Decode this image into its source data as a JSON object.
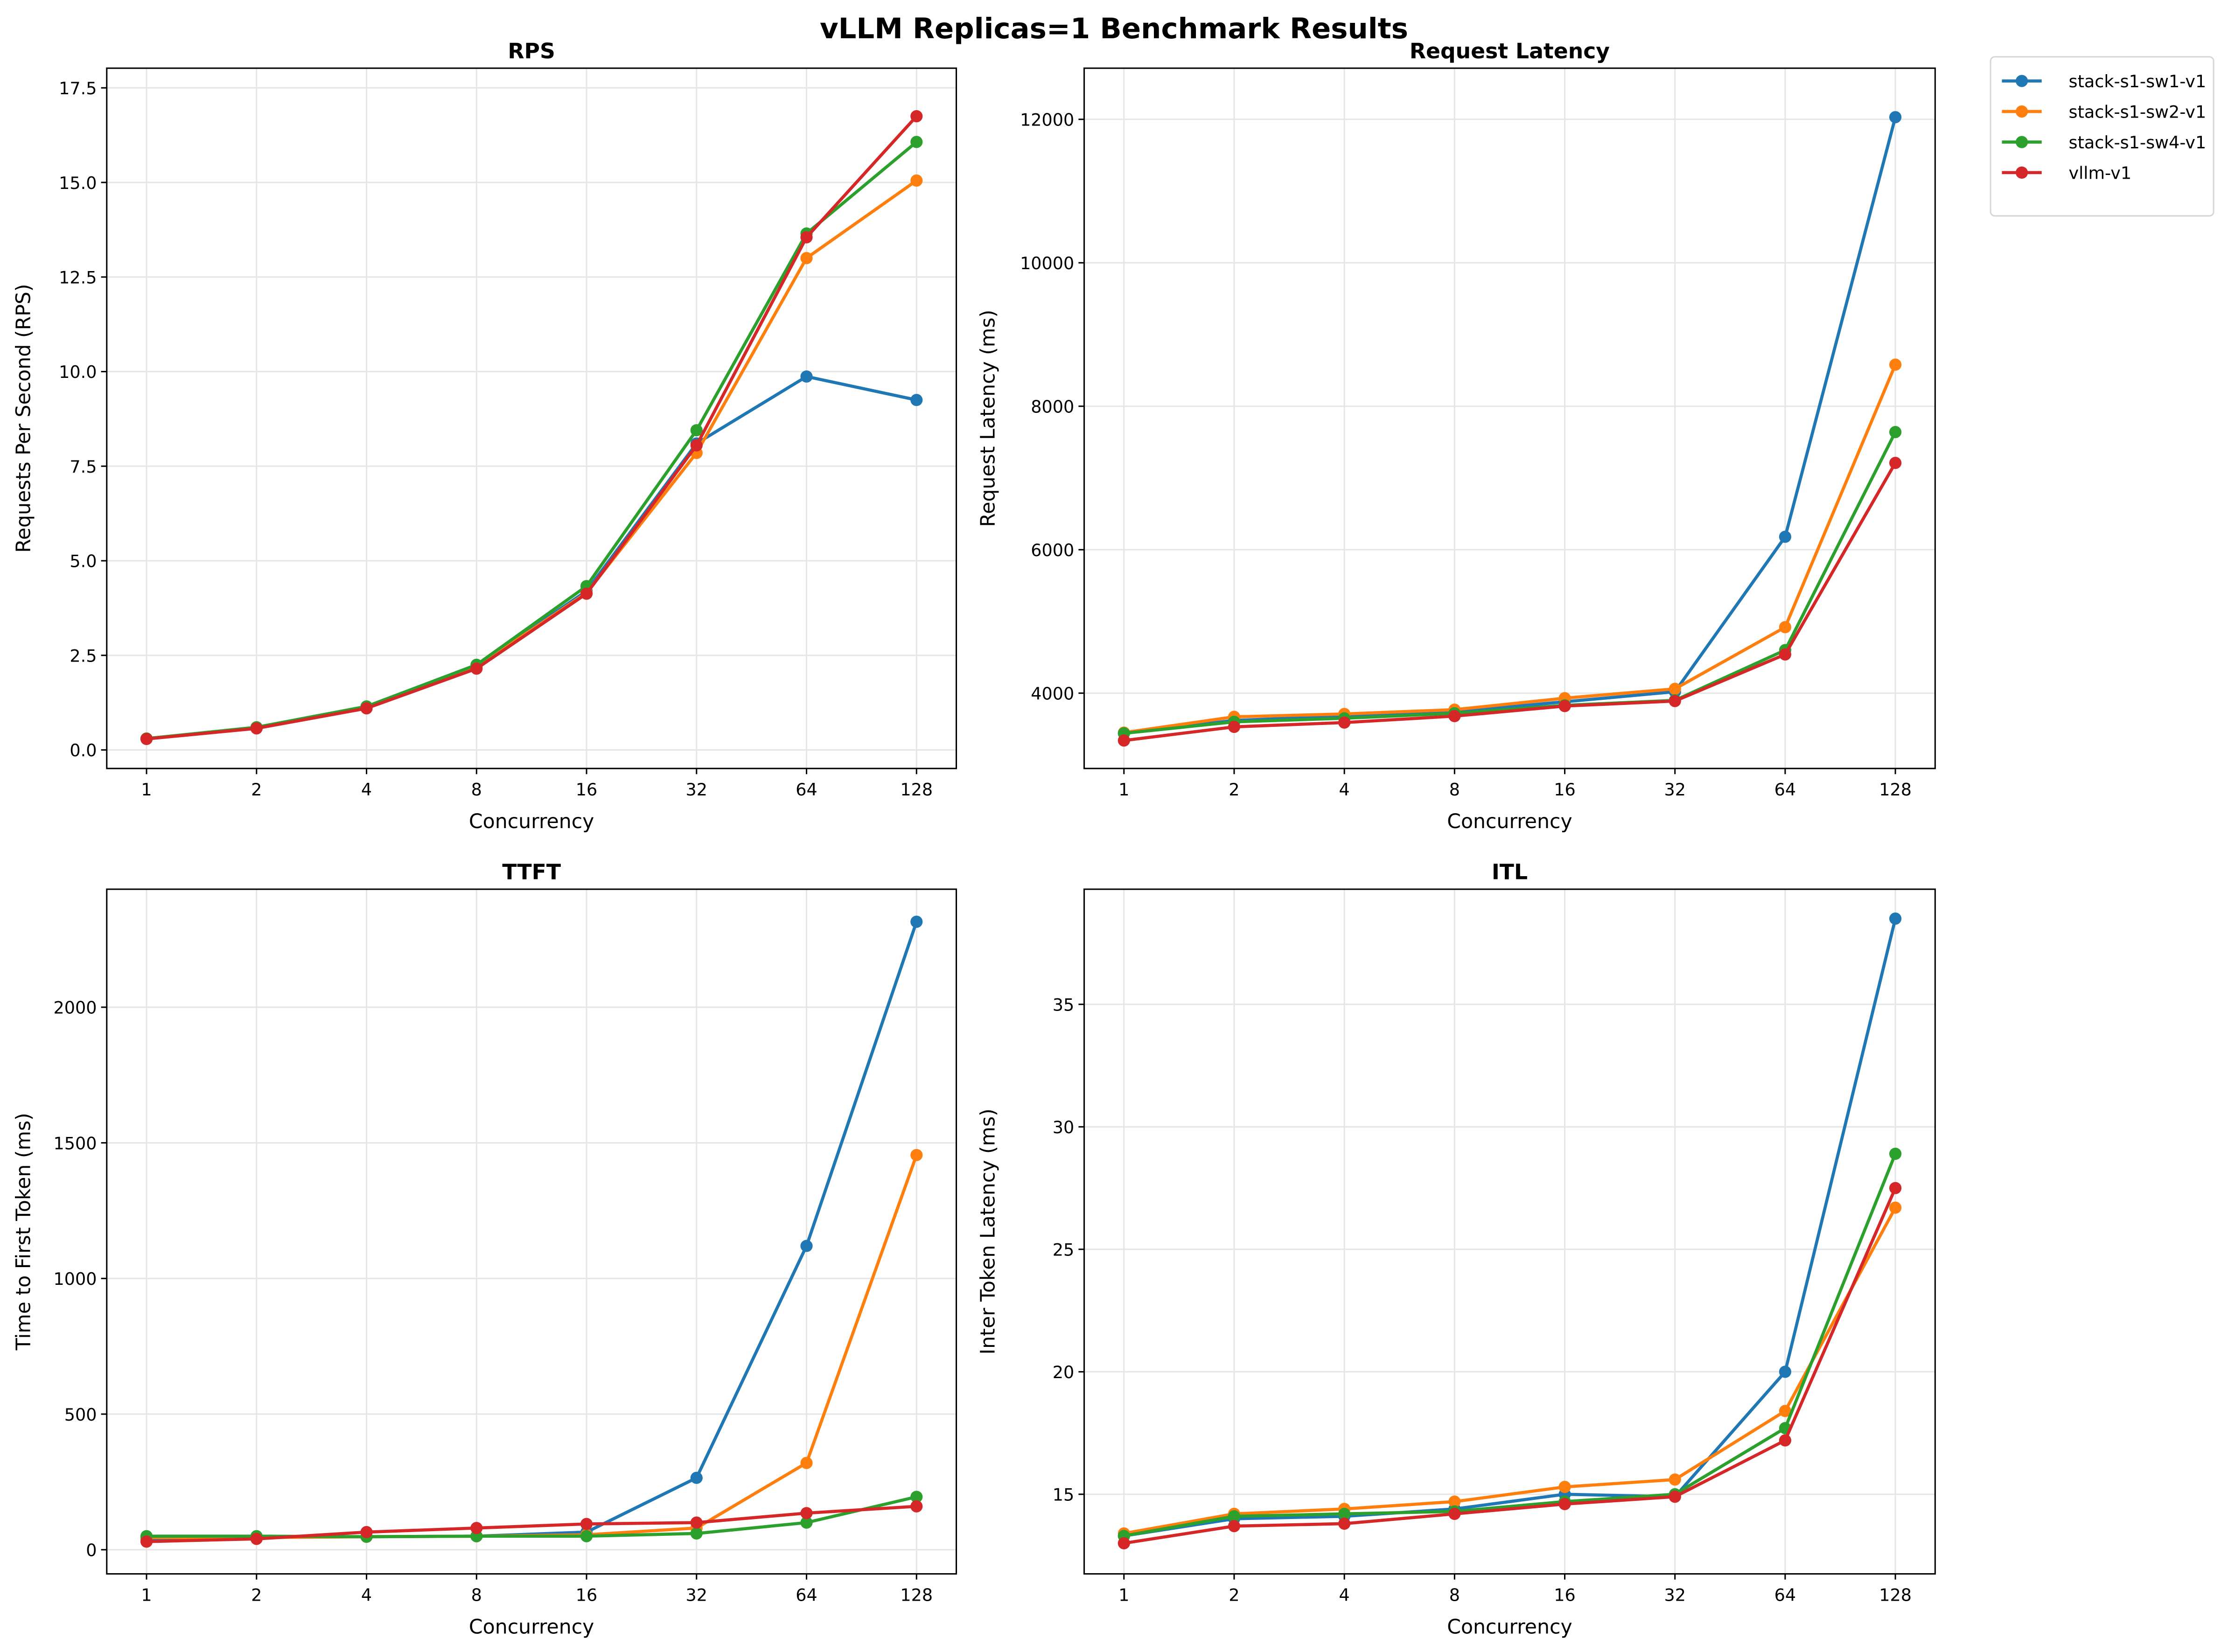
{
  "title": "vLLM Replicas=1 Benchmark Results",
  "legend": {
    "placement": "outside-top-right",
    "entries": [
      {
        "name": "stack-s1-sw1-v1",
        "color": "#1f77b4"
      },
      {
        "name": "stack-s1-sw2-v1",
        "color": "#ff7f0e"
      },
      {
        "name": "stack-s1-sw4-v1",
        "color": "#2ca02c"
      },
      {
        "name": "vllm-v1",
        "color": "#d62728"
      }
    ]
  },
  "chart_data": [
    {
      "type": "line",
      "title": "RPS",
      "xlabel": "Concurrency",
      "ylabel": "Requests Per Second (RPS)",
      "categories": [
        "1",
        "2",
        "4",
        "8",
        "16",
        "32",
        "64",
        "128"
      ],
      "ylim": [
        -0.49,
        18.02
      ],
      "yticks": [
        "0.0",
        "2.5",
        "5.0",
        "7.5",
        "10.0",
        "12.5",
        "15.0",
        "17.5"
      ],
      "grid": true,
      "series": [
        {
          "name": "stack-s1-sw1-v1",
          "values": [
            0.3,
            0.58,
            1.13,
            2.22,
            4.2,
            8.1,
            9.87,
            9.25
          ]
        },
        {
          "name": "stack-s1-sw2-v1",
          "values": [
            0.3,
            0.58,
            1.12,
            2.2,
            4.15,
            7.85,
            13.0,
            15.05
          ]
        },
        {
          "name": "stack-s1-sw4-v1",
          "values": [
            0.3,
            0.6,
            1.15,
            2.25,
            4.33,
            8.45,
            13.65,
            16.07
          ]
        },
        {
          "name": "vllm-v1",
          "values": [
            0.29,
            0.57,
            1.1,
            2.15,
            4.13,
            8.05,
            13.55,
            16.75
          ]
        }
      ]
    },
    {
      "type": "line",
      "title": "Request Latency",
      "xlabel": "Concurrency",
      "ylabel": "Request Latency (ms)",
      "categories": [
        "1",
        "2",
        "4",
        "8",
        "16",
        "32",
        "64",
        "128"
      ],
      "ylim": [
        2950,
        12713
      ],
      "yticks": [
        "4000",
        "6000",
        "8000",
        "10000",
        "12000"
      ],
      "grid": true,
      "series": [
        {
          "name": "stack-s1-sw1-v1",
          "values": [
            3440,
            3620,
            3680,
            3740,
            3880,
            4020,
            6180,
            12030
          ]
        },
        {
          "name": "stack-s1-sw2-v1",
          "values": [
            3450,
            3670,
            3710,
            3770,
            3930,
            4060,
            4920,
            8580
          ]
        },
        {
          "name": "stack-s1-sw4-v1",
          "values": [
            3440,
            3600,
            3650,
            3720,
            3830,
            3900,
            4600,
            7640
          ]
        },
        {
          "name": "vllm-v1",
          "values": [
            3340,
            3530,
            3590,
            3680,
            3820,
            3890,
            4540,
            7210
          ]
        }
      ]
    },
    {
      "type": "line",
      "title": "TTFT",
      "xlabel": "Concurrency",
      "ylabel": "Time to First Token (ms)",
      "categories": [
        "1",
        "2",
        "4",
        "8",
        "16",
        "32",
        "64",
        "128"
      ],
      "ylim": [
        -89,
        2435
      ],
      "yticks": [
        "0",
        "500",
        "1000",
        "1500",
        "2000"
      ],
      "grid": true,
      "series": [
        {
          "name": "stack-s1-sw1-v1",
          "values": [
            40,
            45,
            48,
            50,
            65,
            265,
            1120,
            2315
          ]
        },
        {
          "name": "stack-s1-sw2-v1",
          "values": [
            45,
            45,
            48,
            50,
            55,
            80,
            320,
            1455
          ]
        },
        {
          "name": "stack-s1-sw4-v1",
          "values": [
            50,
            50,
            48,
            50,
            50,
            60,
            100,
            195
          ]
        },
        {
          "name": "vllm-v1",
          "values": [
            30,
            40,
            65,
            80,
            95,
            100,
            135,
            160
          ]
        }
      ]
    },
    {
      "type": "line",
      "title": "ITL",
      "xlabel": "Concurrency",
      "ylabel": "Inter Token Latency (ms)",
      "categories": [
        "1",
        "2",
        "4",
        "8",
        "16",
        "32",
        "64",
        "128"
      ],
      "ylim": [
        11.75,
        39.7
      ],
      "yticks": [
        "15",
        "20",
        "25",
        "30",
        "35"
      ],
      "grid": true,
      "series": [
        {
          "name": "stack-s1-sw1-v1",
          "values": [
            13.3,
            14.0,
            14.1,
            14.4,
            15.0,
            14.9,
            20.0,
            38.5
          ]
        },
        {
          "name": "stack-s1-sw2-v1",
          "values": [
            13.4,
            14.2,
            14.4,
            14.7,
            15.3,
            15.6,
            18.4,
            26.7
          ]
        },
        {
          "name": "stack-s1-sw4-v1",
          "values": [
            13.3,
            14.1,
            14.2,
            14.3,
            14.7,
            15.0,
            17.7,
            28.9
          ]
        },
        {
          "name": "vllm-v1",
          "values": [
            13.0,
            13.7,
            13.8,
            14.2,
            14.6,
            14.9,
            17.2,
            27.5
          ]
        }
      ]
    }
  ]
}
